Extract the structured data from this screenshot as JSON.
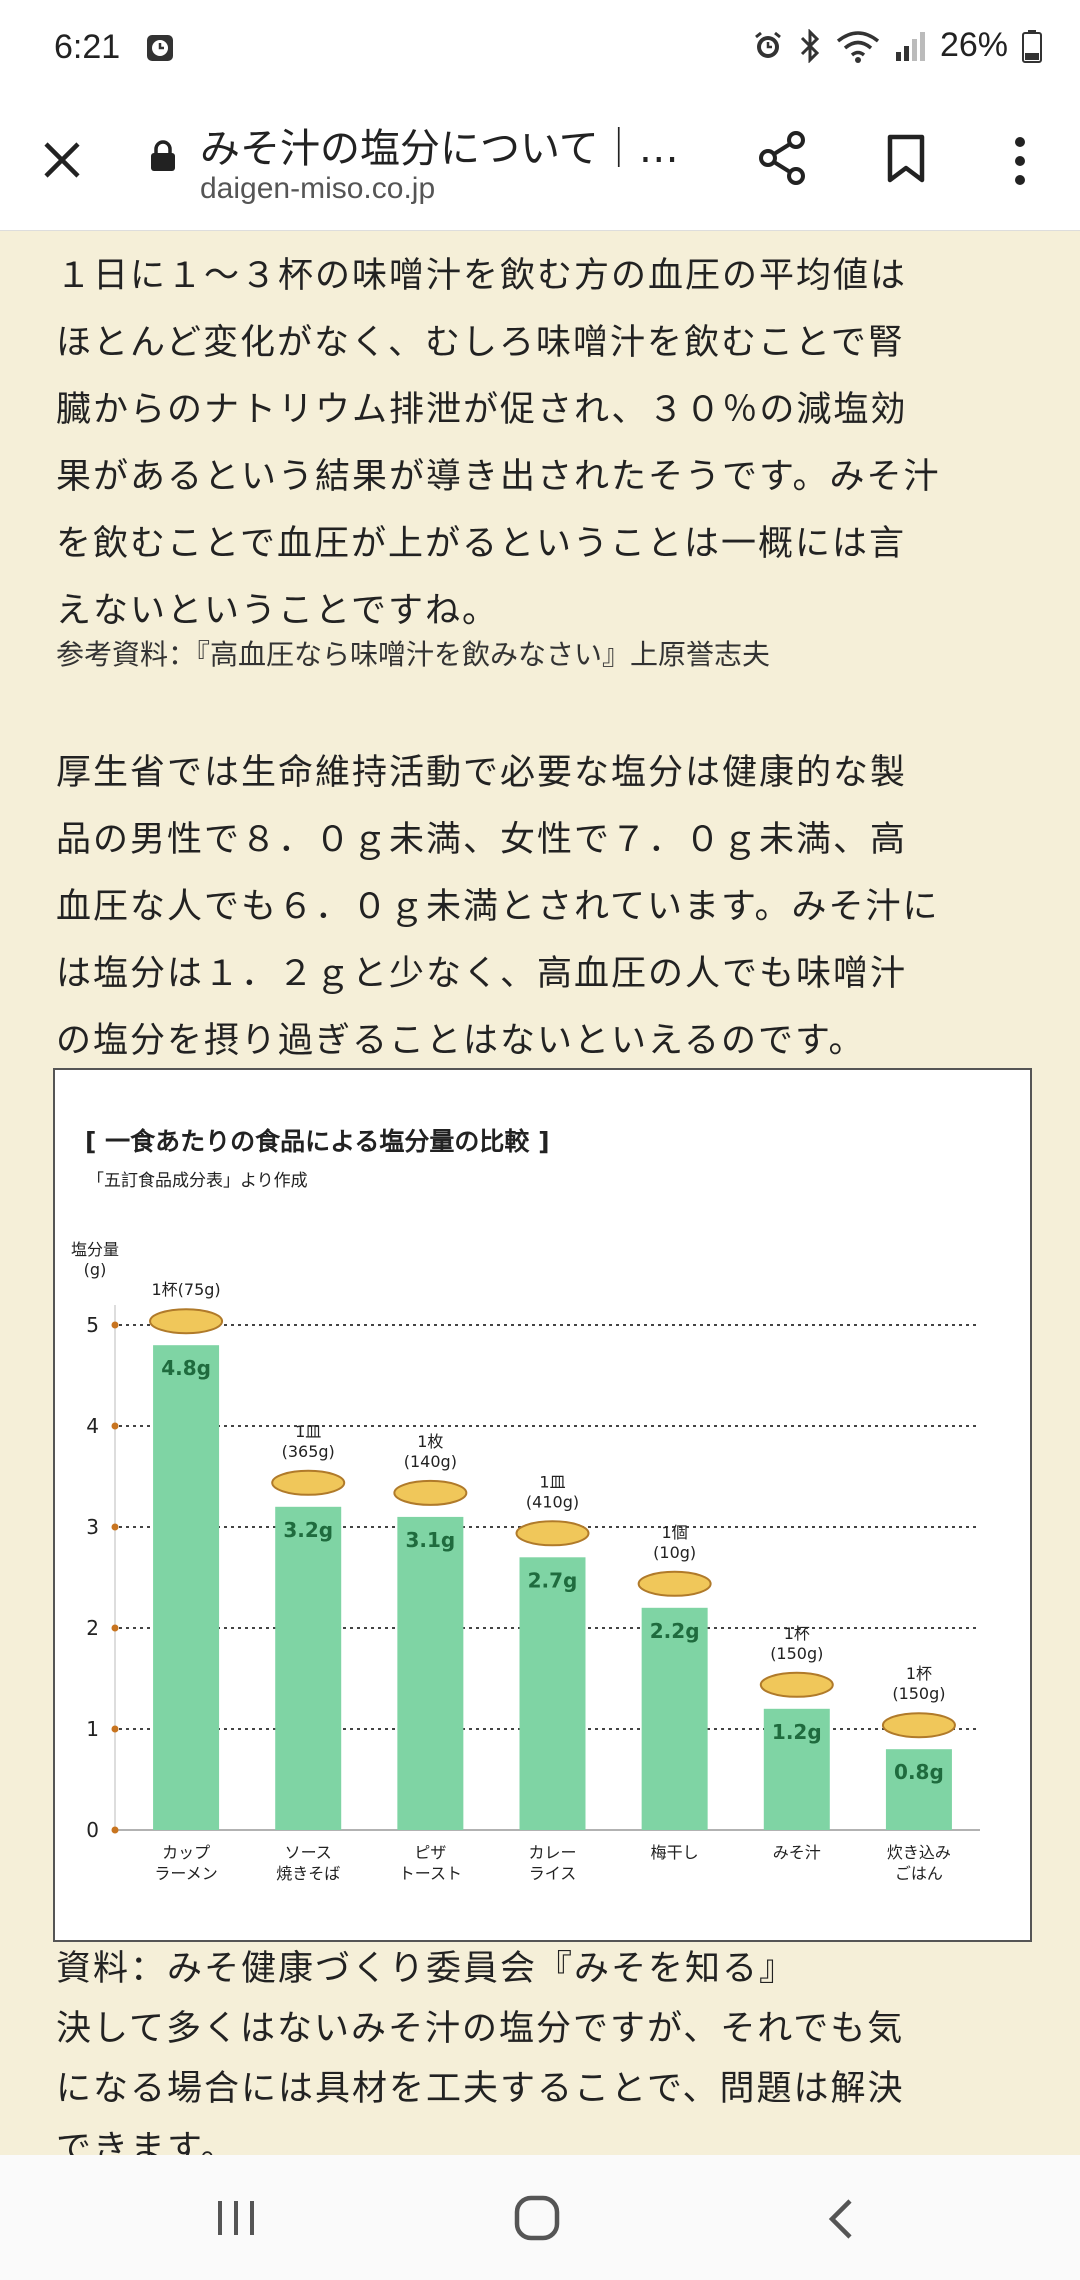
{
  "status_bar": {
    "time": "6:21",
    "battery": "26%"
  },
  "browser": {
    "title": "みそ汁の塩分について｜…",
    "url": "daigen-miso.co.jp"
  },
  "article": {
    "para1_lines": [
      "１日に１～３杯の味噌汁を飲む方の血圧の平均値は",
      "ほとんど変化がなく、むしろ味噌汁を飲むことで腎",
      "臓からのナトリウム排泄が促され、３０％の減塩効",
      "果があるという結果が導き出されたそうです。みそ汁",
      "を飲むことで血圧が上がるということは一概には言",
      "えないということですね。"
    ],
    "reference": "参考資料：『高血圧なら味噌汁を飲みなさい』上原誉志夫",
    "para2_lines": [
      "厚生省では生命維持活動で必要な塩分は健康的な製",
      "品の男性で８．０ｇ未満、女性で７．０ｇ未満、高",
      "血圧な人でも６．０ｇ未満とされています。みそ汁に",
      "は塩分は１．２ｇと少なく、高血圧の人でも味噌汁",
      "の塩分を摂り過ぎることはないといえるのです。"
    ],
    "source": "資料：みそ健康づくり委員会『みそを知る』",
    "para3_lines": [
      "決して多くはないみそ汁の塩分ですが、それでも気",
      "になる場合には具材を工夫することで、問題は解決",
      "できます。"
    ]
  },
  "chart_data": {
    "type": "bar",
    "title": "[ 一食あたりの食品による塩分量の比較 ]",
    "subtitle": "「五訂食品成分表」より作成",
    "ylabel": "塩分量\n(g)",
    "ylim": [
      0,
      5
    ],
    "yticks": [
      0,
      1,
      2,
      3,
      4,
      5
    ],
    "grid": true,
    "categories": [
      "カップ\nラーメン",
      "ソース\n焼きそば",
      "ピザ\nトースト",
      "カレー\nライス",
      "梅干し",
      "みそ汁",
      "炊き込み\nごはん"
    ],
    "values": [
      4.8,
      3.2,
      3.1,
      2.7,
      2.2,
      1.2,
      0.8
    ],
    "value_labels": [
      "4.8g",
      "3.2g",
      "3.1g",
      "2.7g",
      "2.2g",
      "1.2g",
      "0.8g"
    ],
    "portions": [
      "1杯(75g)",
      "1皿\n(365g)",
      "1枚\n(140g)",
      "1皿\n(410g)",
      "1個\n(10g)",
      "1杯\n(150g)",
      "1杯\n(150g)"
    ],
    "bar_color": "#7fd4a4",
    "value_label_color": "#1f6b3e",
    "tick_marker_color": "#c8741f"
  }
}
